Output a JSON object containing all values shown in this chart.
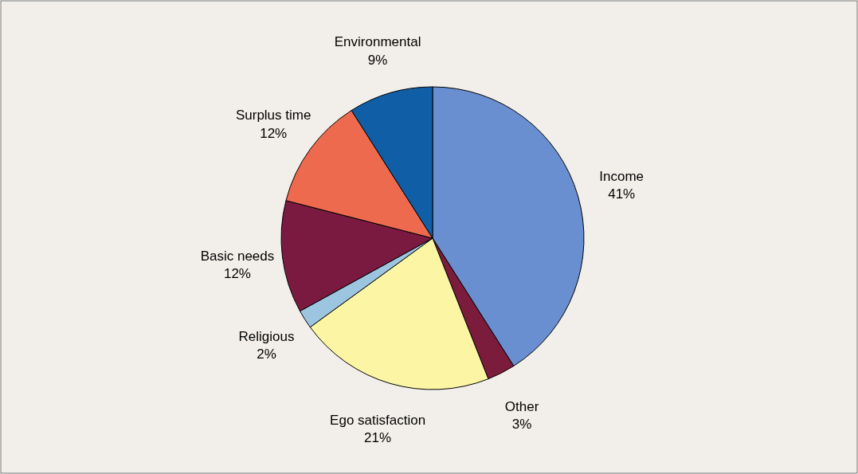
{
  "chart_data": {
    "type": "pie",
    "categories": [
      "Income",
      "Other",
      "Ego satisfaction",
      "Religious",
      "Basic needs",
      "Surplus time",
      "Environmental"
    ],
    "values": [
      41,
      3,
      21,
      2,
      12,
      12,
      9
    ],
    "colors": [
      "#6a8fd0",
      "#7b1c3c",
      "#fbf5a4",
      "#9cc6e0",
      "#7a1a40",
      "#ee6a4e",
      "#0f5ea6"
    ],
    "value_labels": [
      "41%",
      "3%",
      "21%",
      "2%",
      "12%",
      "12%",
      "9%"
    ]
  }
}
